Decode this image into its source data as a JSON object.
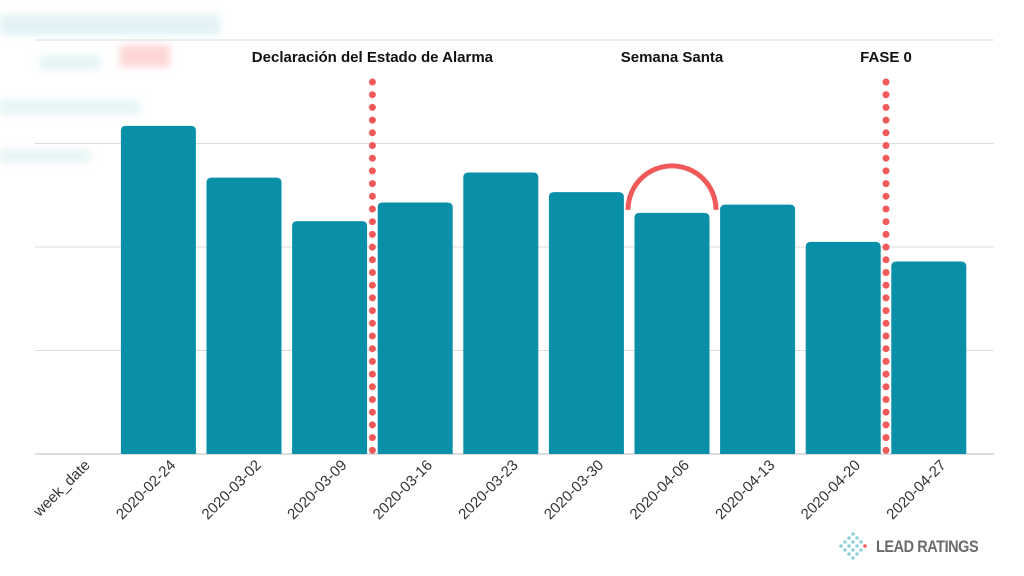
{
  "chart_data": {
    "type": "bar",
    "xlabel": "week_date",
    "categories": [
      "2020-02-24",
      "2020-03-02",
      "2020-03-09",
      "2020-03-16",
      "2020-03-23",
      "2020-03-30",
      "2020-04-06",
      "2020-04-13",
      "2020-04-20",
      "2020-04-27"
    ],
    "values": [
      3.17,
      2.67,
      2.25,
      2.43,
      2.72,
      2.53,
      2.33,
      2.41,
      2.05,
      1.86
    ],
    "ylim": [
      0,
      4
    ],
    "grid": true,
    "annotations": [
      {
        "label": "Declaración del Estado de Alarma",
        "type": "vline",
        "between": [
          "2020-03-09",
          "2020-03-16"
        ]
      },
      {
        "label": "Semana Santa",
        "type": "arc",
        "over": "2020-04-06"
      },
      {
        "label": "FASE 0",
        "type": "vline",
        "between": [
          "2020-04-20",
          "2020-04-27"
        ]
      }
    ],
    "colors": {
      "bar": "#0a8fa8",
      "annotation": "#f05a5a",
      "grid": "#dddddd"
    }
  },
  "brand": {
    "name": "LEAD RATINGS"
  }
}
